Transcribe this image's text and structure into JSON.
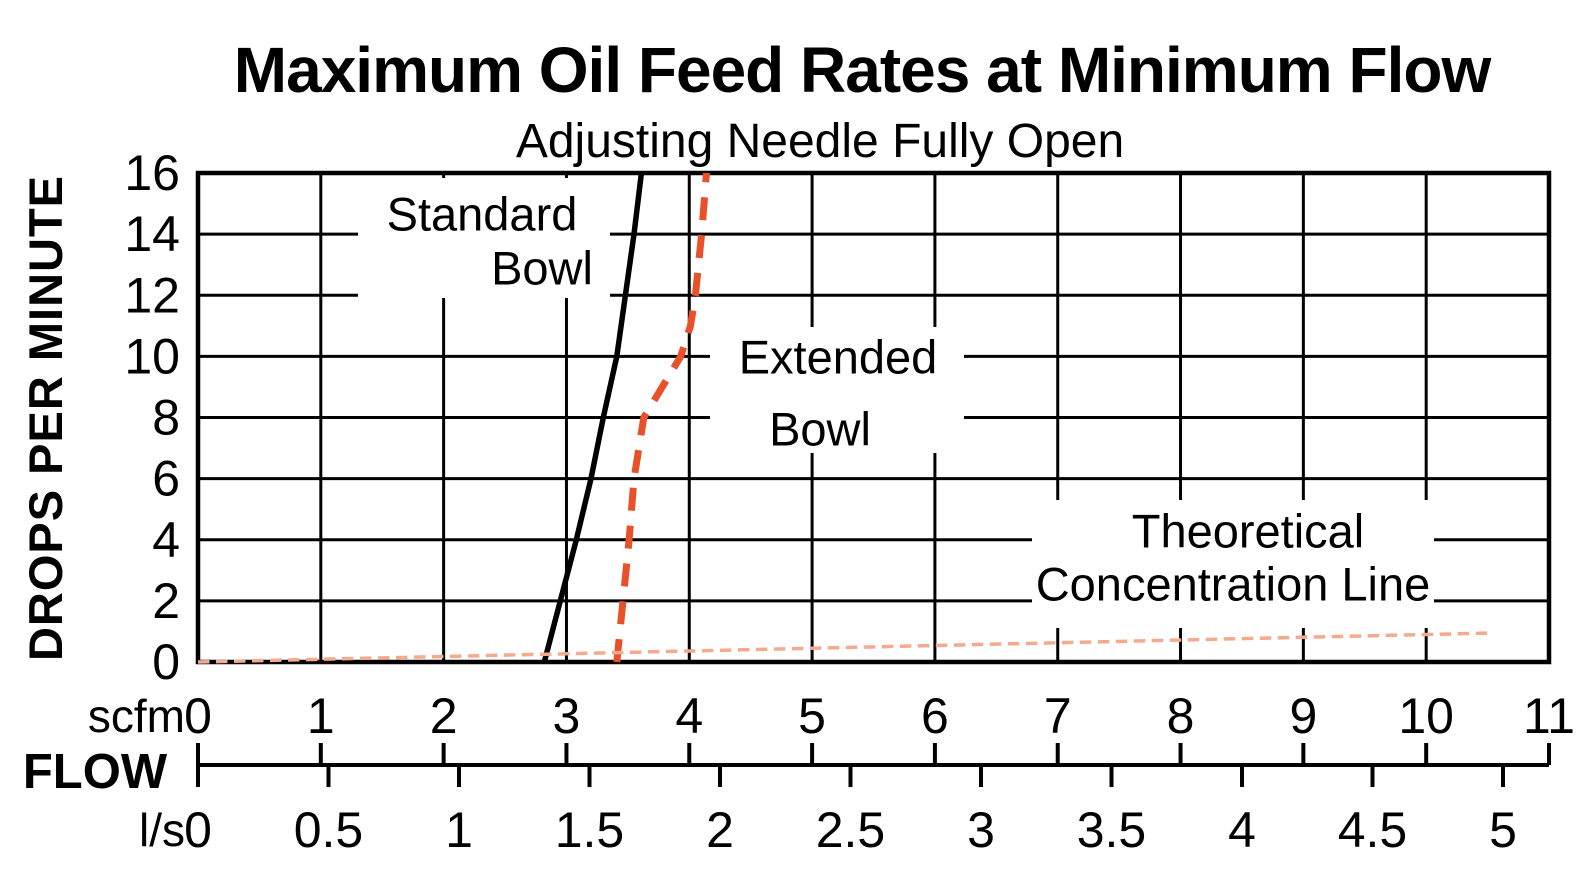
{
  "title": "Maximum Oil Feed Rates at Minimum Flow",
  "subtitle": "Adjusting Needle Fully Open",
  "y_axis": {
    "label": "DROPS PER MINUTE",
    "ticks": [
      16,
      14,
      12,
      10,
      8,
      6,
      4,
      2,
      0
    ]
  },
  "x_axis": {
    "flow_label": "FLOW",
    "scfm": {
      "unit": "scfm",
      "ticks": [
        0,
        1,
        2,
        3,
        4,
        5,
        6,
        7,
        8,
        9,
        10,
        11
      ]
    },
    "ls": {
      "unit": "l/s",
      "ticks": [
        0,
        0.5,
        1,
        1.5,
        2,
        2.5,
        3,
        3.5,
        4,
        4.5,
        5
      ]
    }
  },
  "annotations": [
    {
      "name": "standard-bowl",
      "lines": [
        "Standard",
        "Bowl"
      ]
    },
    {
      "name": "extended-bowl",
      "lines": [
        "Extended",
        "Bowl"
      ]
    },
    {
      "name": "theoretical",
      "lines": [
        "Theoretical",
        "Concentration Line"
      ]
    }
  ],
  "colors": {
    "standard_bowl": "#000000",
    "extended_bowl": "#e8512a",
    "theoretical_line": "#f5a98d",
    "grid": "#000000",
    "background": "#ffffff"
  },
  "chart_data": {
    "type": "line",
    "title": "Maximum Oil Feed Rates at Minimum Flow",
    "subtitle": "Adjusting Needle Fully Open",
    "xlabel": "FLOW",
    "x_units": [
      "scfm",
      "l/s"
    ],
    "x_scfm_range": [
      0,
      11
    ],
    "x_ls_range": [
      0,
      5
    ],
    "scfm_per_ls": 2.119,
    "ylabel": "DROPS PER MINUTE",
    "ylim": [
      0,
      16
    ],
    "grid": "on",
    "legend_position": "inline-annotations",
    "series": [
      {
        "name": "Standard Bowl",
        "style": "solid",
        "color": "#000000",
        "stroke_width": 5.5,
        "points_scfm_drops": [
          [
            2.82,
            0
          ],
          [
            2.95,
            2
          ],
          [
            3.08,
            4
          ],
          [
            3.2,
            6
          ],
          [
            3.3,
            8
          ],
          [
            3.41,
            10
          ],
          [
            3.48,
            12
          ],
          [
            3.55,
            14
          ],
          [
            3.61,
            16
          ]
        ]
      },
      {
        "name": "Extended Bowl",
        "style": "dashed",
        "color": "#e8512a",
        "stroke_width": 7,
        "points_scfm_drops": [
          [
            3.41,
            0
          ],
          [
            3.46,
            2
          ],
          [
            3.51,
            4
          ],
          [
            3.55,
            6
          ],
          [
            3.63,
            8
          ],
          [
            3.78,
            9
          ],
          [
            3.93,
            10
          ],
          [
            4.01,
            11
          ],
          [
            4.05,
            12
          ],
          [
            4.1,
            14
          ],
          [
            4.14,
            16
          ]
        ]
      },
      {
        "name": "Theoretical Concentration Line",
        "style": "dotted",
        "color": "#f5a98d",
        "stroke_width": 3.5,
        "points_scfm_drops": [
          [
            0,
            0
          ],
          [
            10.55,
            0.95
          ]
        ]
      }
    ]
  }
}
